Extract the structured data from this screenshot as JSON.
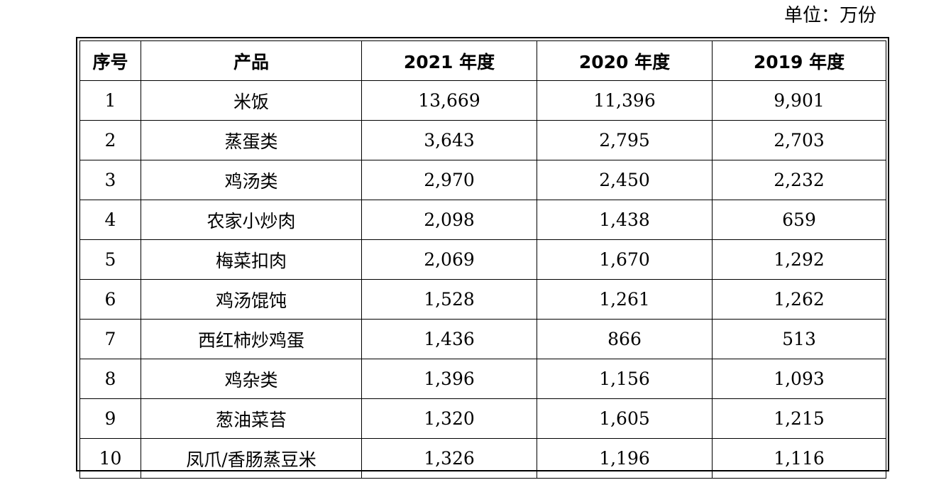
{
  "unit_label": "单位：万份",
  "table": {
    "headers": {
      "index": "序号",
      "product": "产品",
      "y2021": "2021 年度",
      "y2020": "2020 年度",
      "y2019": "2019 年度"
    },
    "rows": [
      {
        "index": "1",
        "product": "米饭",
        "y2021": "13,669",
        "y2020": "11,396",
        "y2019": "9,901"
      },
      {
        "index": "2",
        "product": "蒸蛋类",
        "y2021": "3,643",
        "y2020": "2,795",
        "y2019": "2,703"
      },
      {
        "index": "3",
        "product": "鸡汤类",
        "y2021": "2,970",
        "y2020": "2,450",
        "y2019": "2,232"
      },
      {
        "index": "4",
        "product": "农家小炒肉",
        "y2021": "2,098",
        "y2020": "1,438",
        "y2019": "659"
      },
      {
        "index": "5",
        "product": "梅菜扣肉",
        "y2021": "2,069",
        "y2020": "1,670",
        "y2019": "1,292"
      },
      {
        "index": "6",
        "product": "鸡汤馄饨",
        "y2021": "1,528",
        "y2020": "1,261",
        "y2019": "1,262"
      },
      {
        "index": "7",
        "product": "西红柿炒鸡蛋",
        "y2021": "1,436",
        "y2020": "866",
        "y2019": "513"
      },
      {
        "index": "8",
        "product": "鸡杂类",
        "y2021": "1,396",
        "y2020": "1,156",
        "y2019": "1,093"
      },
      {
        "index": "9",
        "product": "葱油菜苔",
        "y2021": "1,320",
        "y2020": "1,605",
        "y2019": "1,215"
      },
      {
        "index": "10",
        "product": "凤爪/香肠蒸豆米",
        "y2021": "1,326",
        "y2020": "1,196",
        "y2019": "1,116"
      }
    ]
  }
}
